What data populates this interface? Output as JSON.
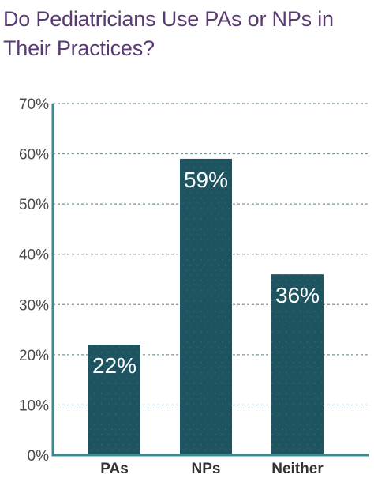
{
  "chart_data": {
    "type": "bar",
    "title": "Do Pediatricians Use PAs or NPs in Their Practices?",
    "categories": [
      "PAs",
      "NPs",
      "Neither"
    ],
    "values": [
      22,
      59,
      36
    ],
    "value_labels": [
      "22%",
      "59%",
      "36%"
    ],
    "yticks": [
      "0%",
      "10%",
      "20%",
      "30%",
      "40%",
      "50%",
      "60%",
      "70%"
    ],
    "ylim": [
      0,
      70
    ],
    "xlabel": "",
    "ylabel": "",
    "grid": true,
    "bar_color": "#1d5460",
    "axis_color": "#3a8b94",
    "grid_color": "#6e9aa5",
    "title_color": "#5a3a72"
  }
}
